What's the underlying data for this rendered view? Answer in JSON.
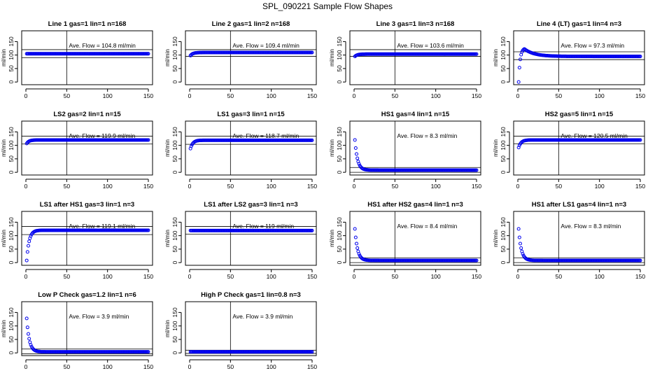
{
  "figure": {
    "title": "SPL_090221  Sample Flow Shapes"
  },
  "chart_data": [
    {
      "type": "scatter",
      "title": "Line 1 gas=1 lin=1 n=168",
      "ylabel": "ml/min",
      "xlim": [
        0,
        150
      ],
      "ylim": [
        -10,
        190
      ],
      "xticks": [
        0,
        50,
        100,
        150
      ],
      "yticks": [
        0,
        50,
        100,
        150
      ],
      "vline_x": 50,
      "hlines": [
        120,
        90
      ],
      "annotation": "Ave. Flow = 104.8  ml/min",
      "series": [
        {
          "values": "constant",
          "level": 104.8,
          "n_points": 150
        }
      ]
    },
    {
      "type": "scatter",
      "title": "Line 2 gas=1 lin=2 n=168",
      "ylabel": "ml/min",
      "xlim": [
        0,
        150
      ],
      "ylim": [
        -10,
        190
      ],
      "xticks": [
        0,
        50,
        100,
        150
      ],
      "yticks": [
        0,
        50,
        100,
        150
      ],
      "vline_x": 50,
      "hlines": [
        120,
        95
      ],
      "annotation": "Ave. Flow = 109.4  ml/min",
      "series": [
        {
          "values": "rise_then_flat",
          "start": 98,
          "level": 109.4,
          "n_points": 150
        }
      ]
    },
    {
      "type": "scatter",
      "title": "Line 3 gas=1 lin=3 n=168",
      "ylabel": "ml/min",
      "xlim": [
        0,
        150
      ],
      "ylim": [
        -10,
        190
      ],
      "xticks": [
        0,
        50,
        100,
        150
      ],
      "yticks": [
        0,
        50,
        100,
        150
      ],
      "vline_x": 50,
      "hlines": [
        120,
        95
      ],
      "annotation": "Ave. Flow = 103.6  ml/min",
      "series": [
        {
          "values": "rise_then_flat",
          "start": 95,
          "level": 103.6,
          "n_points": 150
        }
      ]
    },
    {
      "type": "scatter",
      "title": "Line 4 (LT) gas=1 lin=4 n=3",
      "ylabel": "ml/min",
      "xlim": [
        0,
        150
      ],
      "ylim": [
        -10,
        190
      ],
      "xticks": [
        0,
        50,
        100,
        150
      ],
      "yticks": [
        0,
        50,
        100,
        150
      ],
      "vline_x": 50,
      "hlines": [
        112,
        83
      ],
      "annotation": "Ave. Flow = 97.3  ml/min",
      "series": [
        {
          "values": "overshoot",
          "start": 0,
          "peak": 125,
          "level": 95,
          "n_points": 150
        }
      ]
    },
    {
      "type": "scatter",
      "title": "LS2 gas=2 lin=1 n=15",
      "ylabel": "ml/min",
      "xlim": [
        0,
        150
      ],
      "ylim": [
        -10,
        190
      ],
      "xticks": [
        0,
        50,
        100,
        150
      ],
      "yticks": [
        0,
        50,
        100,
        150
      ],
      "vline_x": 50,
      "hlines": [
        134,
        105
      ],
      "annotation": "Ave. Flow = 119.9  ml/min",
      "series": [
        {
          "values": "rise_then_flat",
          "start": 107,
          "level": 120,
          "n_points": 150
        }
      ]
    },
    {
      "type": "scatter",
      "title": "LS1 gas=3 lin=1 n=15",
      "ylabel": "ml/min",
      "xlim": [
        0,
        150
      ],
      "ylim": [
        -10,
        190
      ],
      "xticks": [
        0,
        50,
        100,
        150
      ],
      "yticks": [
        0,
        50,
        100,
        150
      ],
      "vline_x": 50,
      "hlines": [
        134,
        104
      ],
      "annotation": "Ave. Flow = 118.7  ml/min",
      "series": [
        {
          "values": "rise_then_flat",
          "start": 88,
          "level": 119,
          "n_points": 150
        }
      ]
    },
    {
      "type": "scatter",
      "title": "HS1 gas=4 lin=1 n=15",
      "ylabel": "ml/min",
      "xlim": [
        0,
        150
      ],
      "ylim": [
        -10,
        190
      ],
      "xticks": [
        0,
        50,
        100,
        150
      ],
      "yticks": [
        0,
        50,
        100,
        150
      ],
      "vline_x": 50,
      "hlines": [
        18,
        0
      ],
      "annotation": "Ave. Flow = 8.3  ml/min",
      "series": [
        {
          "values": "decay",
          "start": 120,
          "level": 8,
          "n_points": 150
        }
      ]
    },
    {
      "type": "scatter",
      "title": "HS2 gas=5 lin=1 n=15",
      "ylabel": "ml/min",
      "xlim": [
        0,
        150
      ],
      "ylim": [
        -10,
        190
      ],
      "xticks": [
        0,
        50,
        100,
        150
      ],
      "yticks": [
        0,
        50,
        100,
        150
      ],
      "vline_x": 50,
      "hlines": [
        134,
        106
      ],
      "annotation": "Ave. Flow = 120.5  ml/min",
      "series": [
        {
          "values": "rise_then_flat",
          "start": 92,
          "level": 120,
          "n_points": 150
        }
      ]
    },
    {
      "type": "scatter",
      "title": "LS1 after HS1 gas=3 lin=1 n=3",
      "ylabel": "ml/min",
      "xlim": [
        0,
        150
      ],
      "ylim": [
        -10,
        190
      ],
      "xticks": [
        0,
        50,
        100,
        150
      ],
      "yticks": [
        0,
        50,
        100,
        150
      ],
      "vline_x": 50,
      "hlines": [
        134,
        104
      ],
      "annotation": "Ave. Flow = 119.1  ml/min",
      "series": [
        {
          "values": "rise_then_flat",
          "start": 8,
          "level": 120,
          "n_points": 150
        }
      ]
    },
    {
      "type": "scatter",
      "title": "LS1 after LS2 gas=3 lin=1 n=3",
      "ylabel": "ml/min",
      "xlim": [
        0,
        150
      ],
      "ylim": [
        -10,
        190
      ],
      "xticks": [
        0,
        50,
        100,
        150
      ],
      "yticks": [
        0,
        50,
        100,
        150
      ],
      "vline_x": 50,
      "hlines": [
        134,
        106
      ],
      "annotation": "Ave. Flow = 119  ml/min",
      "series": [
        {
          "values": "constant",
          "level": 119,
          "n_points": 150
        }
      ]
    },
    {
      "type": "scatter",
      "title": "HS1 after HS2 gas=4 lin=1 n=3",
      "ylabel": "ml/min",
      "xlim": [
        0,
        150
      ],
      "ylim": [
        -10,
        190
      ],
      "xticks": [
        0,
        50,
        100,
        150
      ],
      "yticks": [
        0,
        50,
        100,
        150
      ],
      "vline_x": 50,
      "hlines": [
        18,
        0
      ],
      "annotation": "Ave. Flow = 8.4  ml/min",
      "series": [
        {
          "values": "decay",
          "start": 125,
          "level": 8,
          "n_points": 150
        }
      ]
    },
    {
      "type": "scatter",
      "title": "HS1 after LS1 gas=4 lin=1 n=3",
      "ylabel": "ml/min",
      "xlim": [
        0,
        150
      ],
      "ylim": [
        -10,
        190
      ],
      "xticks": [
        0,
        50,
        100,
        150
      ],
      "yticks": [
        0,
        50,
        100,
        150
      ],
      "vline_x": 50,
      "hlines": [
        18,
        0
      ],
      "annotation": "Ave. Flow = 8.3  ml/min",
      "series": [
        {
          "values": "decay",
          "start": 125,
          "level": 8,
          "n_points": 150
        }
      ]
    },
    {
      "type": "scatter",
      "title": "Low P Check gas=1.2 lin=1 n=6",
      "ylabel": "ml/min",
      "xlim": [
        0,
        150
      ],
      "ylim": [
        -10,
        190
      ],
      "xticks": [
        0,
        50,
        100,
        150
      ],
      "yticks": [
        0,
        50,
        100,
        150
      ],
      "vline_x": 50,
      "hlines": [
        15,
        -3
      ],
      "annotation": "Ave. Flow = 3.9  ml/min",
      "series": [
        {
          "values": "decay",
          "start": 128,
          "level": 4,
          "n_points": 150
        }
      ]
    },
    {
      "type": "scatter",
      "title": "High P Check gas=1 lin=0.8 n=3",
      "ylabel": "ml/min",
      "xlim": [
        0,
        150
      ],
      "ylim": [
        -10,
        190
      ],
      "xticks": [
        0,
        50,
        100,
        150
      ],
      "yticks": [
        0,
        50,
        100,
        150
      ],
      "vline_x": 50,
      "hlines": [
        10,
        -2
      ],
      "annotation": "Ave. Flow = 3.9  ml/min",
      "series": [
        {
          "values": "constant",
          "level": 4,
          "n_points": 150
        }
      ]
    }
  ]
}
